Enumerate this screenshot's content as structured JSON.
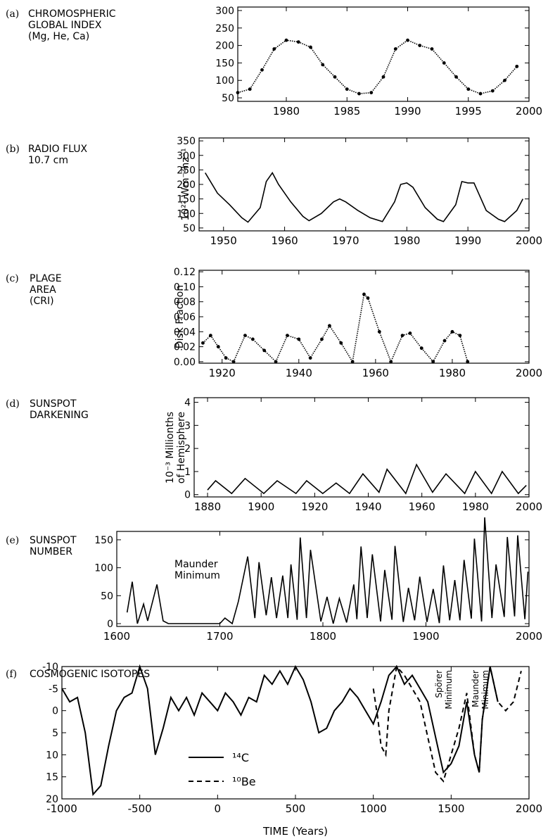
{
  "panels": [
    {
      "letter": "(a)",
      "title": [
        "CHROMOSPHERIC",
        "GLOBAL INDEX",
        "(Mg, He, Ca)"
      ],
      "ylabel": "",
      "xticks": [
        1980,
        1985,
        1990,
        1995,
        2000
      ],
      "yticks": [
        50,
        100,
        150,
        200,
        250,
        300
      ]
    },
    {
      "letter": "(b)",
      "title": [
        "RADIO FLUX",
        "10.7 cm"
      ],
      "ylabel": "10²² Wm⁻²hz⁻¹",
      "xticks": [
        1950,
        1960,
        1970,
        1980,
        1990,
        2000
      ],
      "yticks": [
        50,
        100,
        150,
        200,
        250,
        300,
        350
      ]
    },
    {
      "letter": "(c)",
      "title": [
        "PLAGE",
        "AREA",
        "(CRI)"
      ],
      "ylabel": "Disk Fraction",
      "xticks": [
        1920,
        1940,
        1960,
        1980,
        2000
      ],
      "yticks": [
        "0.00",
        "0.02",
        "0.04",
        "0.06",
        "0.08",
        "0.10",
        "0.12"
      ]
    },
    {
      "letter": "(d)",
      "title": [
        "SUNSPOT",
        "DARKENING"
      ],
      "ylabel": [
        "10⁻³ Millionths",
        "of Hemisphere"
      ],
      "xticks": [
        1880,
        1900,
        1920,
        1940,
        1960,
        1980,
        2000
      ],
      "yticks": [
        0,
        1,
        2,
        3,
        4
      ]
    },
    {
      "letter": "(e)",
      "title": [
        "SUNSPOT",
        "NUMBER"
      ],
      "ylabel": "",
      "xticks": [
        1600,
        1700,
        1800,
        1900,
        2000
      ],
      "yticks": [
        0,
        50,
        100,
        150
      ],
      "annotation": [
        "Maunder",
        "Minimum"
      ]
    },
    {
      "letter": "(f)",
      "title": [
        "COSMOGENIC ISOTOPES"
      ],
      "ylabel": "",
      "xticks": [
        -1000,
        -500,
        0,
        500,
        1000,
        1500,
        2000
      ],
      "yticks": [
        -10,
        -5,
        0,
        5,
        10,
        15,
        20
      ],
      "xlabel": "TIME (Years)",
      "annotations": [
        [
          "Spörer",
          "Minimum"
        ],
        [
          "Maunder",
          "Minimum"
        ]
      ],
      "legend": [
        "¹⁴C",
        "¹⁰Be"
      ]
    }
  ],
  "chart_data": [
    {
      "type": "scatter",
      "title": "CHROMOSPHERIC GLOBAL INDEX (Mg, He, Ca)",
      "xlim": [
        1976,
        2000
      ],
      "ylim": [
        40,
        310
      ],
      "x": [
        1976,
        1977,
        1978,
        1979,
        1980,
        1981,
        1982,
        1983,
        1984,
        1985,
        1986,
        1987,
        1988,
        1989,
        1990,
        1991,
        1992,
        1993,
        1994,
        1995,
        1996,
        1997,
        1998,
        1999
      ],
      "y": [
        65,
        75,
        130,
        190,
        215,
        210,
        195,
        145,
        110,
        75,
        62,
        65,
        110,
        190,
        215,
        200,
        190,
        150,
        110,
        75,
        62,
        70,
        100,
        140
      ]
    },
    {
      "type": "line",
      "title": "RADIO FLUX 10.7 cm",
      "ylabel": "10²² Wm⁻²hz⁻¹",
      "xlim": [
        1946,
        2000
      ],
      "ylim": [
        40,
        360
      ],
      "x": [
        1947,
        1949,
        1951,
        1953,
        1954,
        1956,
        1957,
        1958,
        1959,
        1961,
        1963,
        1964,
        1966,
        1968,
        1969,
        1970,
        1972,
        1974,
        1976,
        1978,
        1979,
        1980,
        1981,
        1983,
        1985,
        1986,
        1988,
        1989,
        1990,
        1991,
        1993,
        1995,
        1996,
        1998,
        1999
      ],
      "y": [
        240,
        170,
        130,
        85,
        70,
        120,
        210,
        240,
        200,
        140,
        90,
        75,
        100,
        140,
        150,
        140,
        110,
        85,
        72,
        140,
        200,
        205,
        190,
        120,
        80,
        72,
        130,
        210,
        205,
        205,
        110,
        80,
        72,
        110,
        150
      ]
    },
    {
      "type": "scatter",
      "title": "PLAGE AREA (CRI)",
      "ylabel": "Disk Fraction",
      "xlim": [
        1914,
        2000
      ],
      "ylim": [
        -0.002,
        0.122
      ],
      "x": [
        1915,
        1917,
        1919,
        1921,
        1923,
        1926,
        1928,
        1931,
        1934,
        1937,
        1940,
        1943,
        1946,
        1948,
        1951,
        1954,
        1957,
        1958,
        1961,
        1964,
        1967,
        1969,
        1972,
        1975,
        1978,
        1980,
        1982,
        1984
      ],
      "y": [
        0.025,
        0.035,
        0.02,
        0.005,
        0.0,
        0.035,
        0.03,
        0.015,
        0.0,
        0.035,
        0.03,
        0.005,
        0.03,
        0.048,
        0.025,
        0.0,
        0.09,
        0.085,
        0.04,
        0.0,
        0.035,
        0.038,
        0.018,
        0.0,
        0.028,
        0.04,
        0.035,
        0.0
      ]
    },
    {
      "type": "line",
      "title": "SUNSPOT DARKENING",
      "ylabel": "10⁻³ Millionths of Hemisphere",
      "xlim": [
        1875,
        2000
      ],
      "ylim": [
        -0.1,
        4.2
      ],
      "x": [
        1880,
        1883,
        1889,
        1894,
        1901,
        1906,
        1913,
        1917,
        1923,
        1928,
        1933,
        1938,
        1944,
        1947,
        1954,
        1958,
        1964,
        1969,
        1976,
        1980,
        1986,
        1990,
        1996,
        1999
      ],
      "y": [
        0.2,
        0.6,
        0.05,
        0.7,
        0.05,
        0.6,
        0.05,
        0.6,
        0.05,
        0.5,
        0.05,
        0.9,
        0.1,
        1.1,
        0.05,
        1.3,
        0.1,
        0.9,
        0.05,
        1.0,
        0.05,
        1.0,
        0.05,
        0.4
      ]
    },
    {
      "type": "line",
      "title": "SUNSPOT NUMBER",
      "xlim": [
        1600,
        2000
      ],
      "ylim": [
        -5,
        165
      ],
      "x": [
        1610,
        1615,
        1620,
        1626,
        1630,
        1639,
        1645,
        1650,
        1700,
        1705,
        1712,
        1718,
        1727,
        1734,
        1738,
        1745,
        1750,
        1755,
        1761,
        1766,
        1769,
        1775,
        1778,
        1784,
        1788,
        1798,
        1804,
        1810,
        1816,
        1823,
        1830,
        1833,
        1837,
        1843,
        1848,
        1856,
        1860,
        1867,
        1870,
        1878,
        1883,
        1889,
        1894,
        1901,
        1907,
        1913,
        1917,
        1923,
        1928,
        1933,
        1937,
        1944,
        1947,
        1954,
        1957,
        1964,
        1968,
        1976,
        1979,
        1986,
        1989,
        1996,
        1999
      ],
      "y": [
        20,
        75,
        0,
        35,
        5,
        70,
        5,
        0,
        0,
        10,
        0,
        40,
        120,
        10,
        110,
        15,
        83,
        10,
        86,
        10,
        106,
        7,
        154,
        10,
        132,
        4,
        48,
        0,
        45,
        2,
        70,
        8,
        138,
        10,
        124,
        4,
        96,
        7,
        139,
        3,
        64,
        6,
        84,
        3,
        62,
        1,
        104,
        6,
        78,
        6,
        114,
        9,
        152,
        4,
        190,
        10,
        106,
        12,
        155,
        13,
        158,
        8,
        93
      ]
    },
    {
      "type": "line",
      "title": "COSMOGENIC ISOTOPES",
      "xlabel": "TIME (Years)",
      "xlim": [
        -1000,
        2000
      ],
      "ylim": [
        20,
        -10
      ],
      "series": [
        {
          "name": "¹⁴C",
          "x": [
            -1000,
            -950,
            -900,
            -850,
            -800,
            -750,
            -700,
            -650,
            -600,
            -550,
            -500,
            -450,
            -400,
            -350,
            -300,
            -250,
            -200,
            -150,
            -100,
            -50,
            0,
            50,
            100,
            150,
            200,
            250,
            300,
            350,
            400,
            450,
            500,
            550,
            600,
            650,
            700,
            750,
            800,
            850,
            900,
            950,
            1000,
            1050,
            1100,
            1150,
            1200,
            1250,
            1300,
            1350,
            1400,
            1450,
            1500,
            1550,
            1600,
            1650,
            1680,
            1700,
            1750,
            1800
          ],
          "y": [
            -5,
            -2,
            -3,
            5,
            19,
            17,
            8,
            0,
            -3,
            -4,
            -10,
            -5,
            10,
            4,
            -3,
            0,
            -3,
            1,
            -4,
            -2,
            0,
            -4,
            -2,
            1,
            -3,
            -2,
            -8,
            -6,
            -9,
            -6,
            -10,
            -7,
            -2,
            5,
            4,
            0,
            -2,
            -5,
            -3,
            0,
            3,
            -2,
            -8,
            -10,
            -6,
            -8,
            -5,
            -2,
            6,
            14,
            12,
            8,
            -2,
            10,
            14,
            2,
            -10,
            -2
          ]
        },
        {
          "name": "¹⁰Be",
          "x": [
            1000,
            1030,
            1050,
            1080,
            1100,
            1150,
            1200,
            1250,
            1300,
            1350,
            1400,
            1450,
            1500,
            1550,
            1600,
            1650,
            1680,
            1700,
            1750,
            1800,
            1850,
            1900,
            1950
          ],
          "y": [
            -5,
            2,
            8,
            10,
            0,
            -10,
            -8,
            -5,
            -2,
            6,
            14,
            16,
            10,
            4,
            -4,
            10,
            14,
            2,
            -10,
            -2,
            0,
            -2,
            -9
          ]
        }
      ]
    }
  ]
}
